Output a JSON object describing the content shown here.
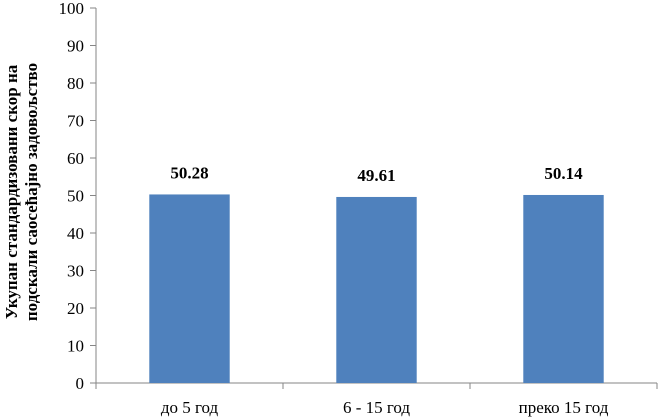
{
  "chart_data": {
    "type": "bar",
    "categories": [
      "до 5 год",
      "6 - 15 год",
      "преко 15  год"
    ],
    "values": [
      50.28,
      49.61,
      50.14
    ],
    "data_labels": [
      "50.28",
      "49.61",
      "50.14"
    ],
    "title": "",
    "xlabel": "",
    "ylabel_lines": [
      "Укупан стандардизовани скор на",
      "подскали саосећајно задовољство"
    ],
    "ylim": [
      0,
      100
    ],
    "yticks": [
      0,
      10,
      20,
      30,
      40,
      50,
      60,
      70,
      80,
      90,
      100
    ],
    "grid": false,
    "legend": "none",
    "bar_color": "#4f81bd"
  }
}
